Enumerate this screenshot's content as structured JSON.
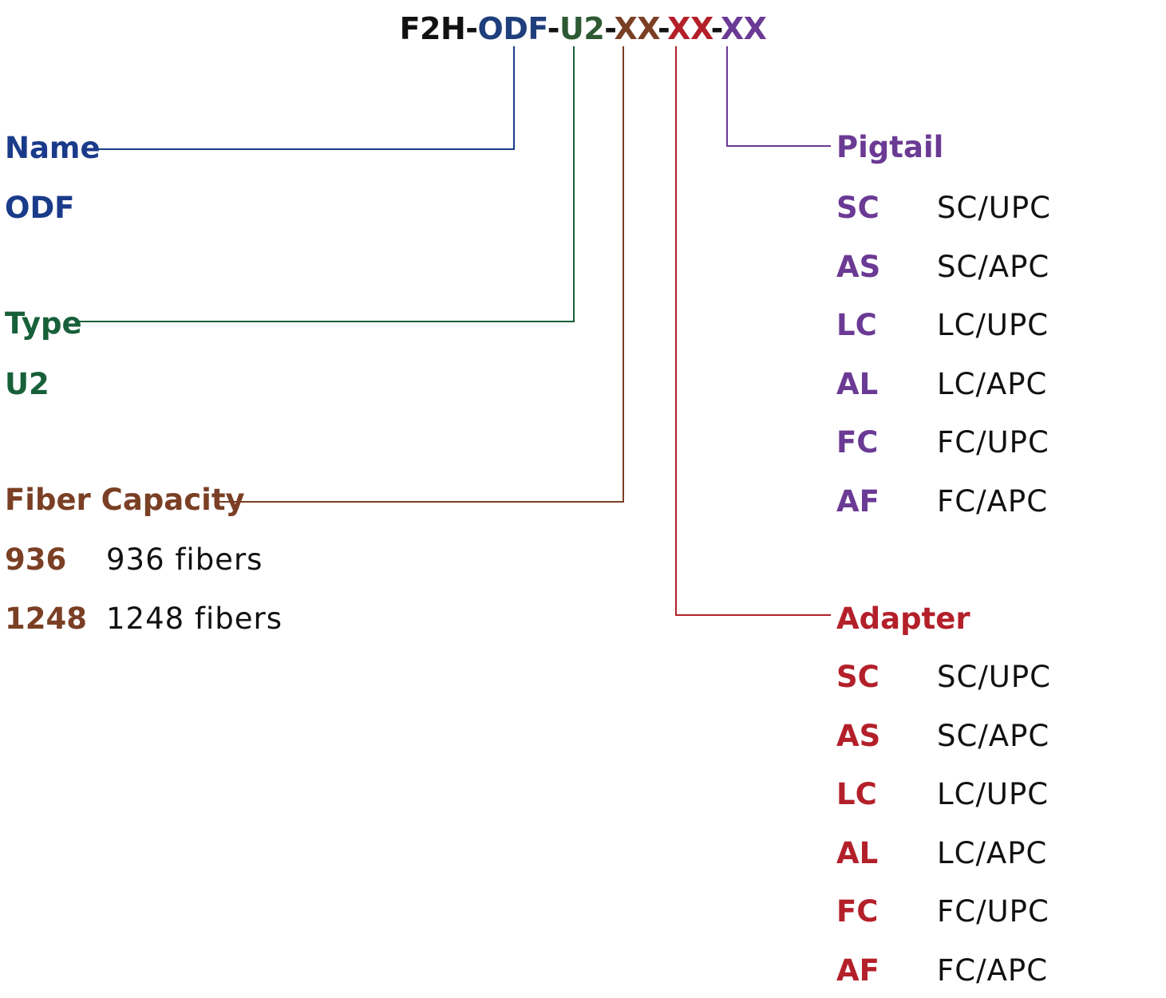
{
  "model_code": {
    "parts": [
      {
        "text": "F2H-",
        "color": "#111111"
      },
      {
        "text": "ODF",
        "color": "#1f3e7c"
      },
      {
        "text": "-",
        "color": "#111111"
      },
      {
        "text": "U2",
        "color": "#2e5a33"
      },
      {
        "text": "-",
        "color": "#111111"
      },
      {
        "text": "XX",
        "color": "#7a3f24"
      },
      {
        "text": "-",
        "color": "#111111"
      },
      {
        "text": "XX",
        "color": "#b3202a"
      },
      {
        "text": "-",
        "color": "#111111"
      },
      {
        "text": "XX",
        "color": "#6b3a94"
      }
    ]
  },
  "colors": {
    "name": "#1a3a8a",
    "type": "#17603a",
    "capacity": "#7a3f24",
    "pigtail": "#6b3a94",
    "adapter": "#b3202a"
  },
  "name": {
    "heading": "Name",
    "value": "ODF"
  },
  "type": {
    "heading": "Type",
    "value": "U2"
  },
  "capacity": {
    "heading": "Fiber Capacity",
    "options": [
      {
        "code": "936",
        "desc": "936 fibers"
      },
      {
        "code": "1248",
        "desc": "1248 fibers"
      }
    ]
  },
  "pigtail": {
    "heading": "Pigtail",
    "options": [
      {
        "code": "SC",
        "desc": "SC/UPC"
      },
      {
        "code": "AS",
        "desc": "SC/APC"
      },
      {
        "code": "LC",
        "desc": "LC/UPC"
      },
      {
        "code": "AL",
        "desc": "LC/APC"
      },
      {
        "code": "FC",
        "desc": "FC/UPC"
      },
      {
        "code": "AF",
        "desc": "FC/APC"
      }
    ]
  },
  "adapter": {
    "heading": "Adapter",
    "options": [
      {
        "code": "SC",
        "desc": "SC/UPC"
      },
      {
        "code": "AS",
        "desc": "SC/APC"
      },
      {
        "code": "LC",
        "desc": "LC/UPC"
      },
      {
        "code": "AL",
        "desc": "LC/APC"
      },
      {
        "code": "FC",
        "desc": "FC/UPC"
      },
      {
        "code": "AF",
        "desc": "FC/APC"
      }
    ]
  }
}
